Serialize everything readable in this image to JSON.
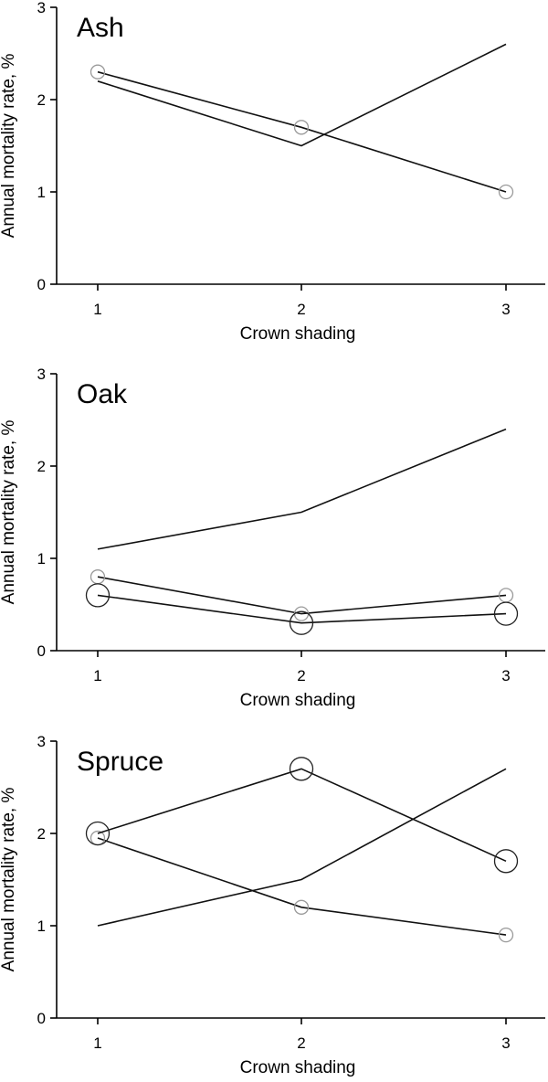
{
  "chart_data": [
    {
      "type": "line",
      "title": "Ash",
      "xlabel": "Crown shading",
      "ylabel": "Annual mortality rate, %",
      "x": [
        1,
        2,
        3
      ],
      "xticks": [
        "1",
        "2",
        "3"
      ],
      "yticks": [
        "0",
        "1",
        "2",
        "3"
      ],
      "ylim": [
        0,
        3
      ],
      "grid": false,
      "series": [
        {
          "values": [
            2.2,
            1.5,
            2.6
          ],
          "marker": "none"
        },
        {
          "values": [
            2.3,
            1.7,
            1.0
          ],
          "marker": "small-circle"
        }
      ]
    },
    {
      "type": "line",
      "title": "Oak",
      "xlabel": "Crown shading",
      "ylabel": "Annual mortality rate, %",
      "x": [
        1,
        2,
        3
      ],
      "xticks": [
        "1",
        "2",
        "3"
      ],
      "yticks": [
        "0",
        "1",
        "2",
        "3"
      ],
      "ylim": [
        0,
        3
      ],
      "grid": false,
      "series": [
        {
          "values": [
            1.1,
            1.5,
            2.4
          ],
          "marker": "none"
        },
        {
          "values": [
            0.8,
            0.4,
            0.6
          ],
          "marker": "small-circle"
        },
        {
          "values": [
            0.6,
            0.3,
            0.4
          ],
          "marker": "large-circle"
        }
      ]
    },
    {
      "type": "line",
      "title": "Spruce",
      "xlabel": "Crown shading",
      "ylabel": "Annual mortality rate, %",
      "x": [
        1,
        2,
        3
      ],
      "xticks": [
        "1",
        "2",
        "3"
      ],
      "yticks": [
        "0",
        "1",
        "2",
        "3"
      ],
      "ylim": [
        0,
        3
      ],
      "grid": false,
      "series": [
        {
          "values": [
            1.0,
            1.5,
            2.7
          ],
          "marker": "none"
        },
        {
          "values": [
            1.95,
            1.2,
            0.9
          ],
          "marker": "small-circle"
        },
        {
          "values": [
            2.0,
            2.7,
            1.7
          ],
          "marker": "large-circle"
        }
      ]
    }
  ]
}
